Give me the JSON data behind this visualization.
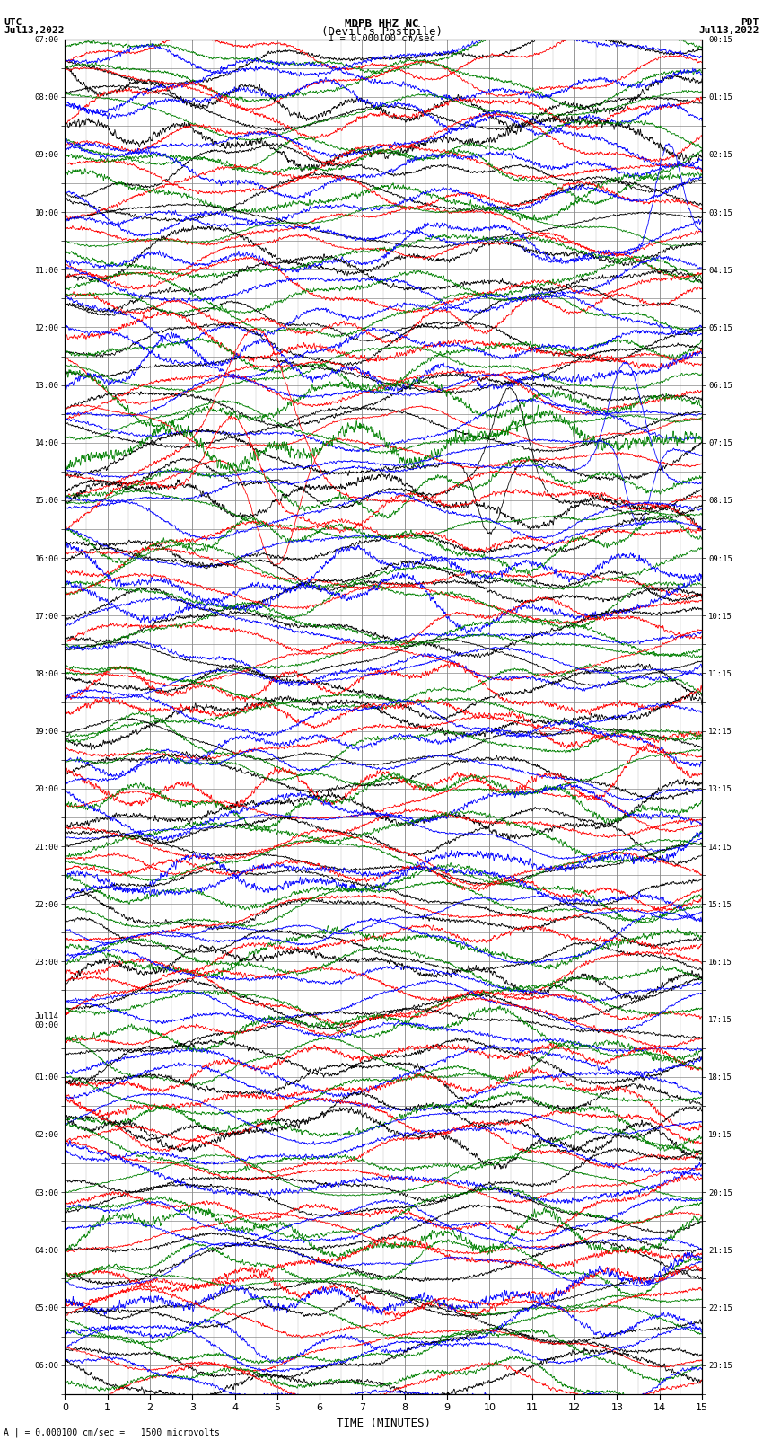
{
  "title_line1": "MDPB HHZ NC",
  "title_line2": "(Devil's Postpile)",
  "scale_label": "I = 0.000100 cm/sec",
  "utc_label": "UTC",
  "utc_date": "Jul13,2022",
  "pdt_label": "PDT",
  "pdt_date": "Jul13,2022",
  "bottom_label": "A | = 0.000100 cm/sec =   1500 microvolts",
  "xlabel": "TIME (MINUTES)",
  "bg_color": "#ffffff",
  "grid_color": "#888888",
  "trace_colors": [
    "black",
    "red",
    "green",
    "blue"
  ],
  "num_rows": 47,
  "minutes_per_row": 15,
  "fig_width": 8.5,
  "fig_height": 16.13,
  "left_tick_labels": [
    "07:00",
    "",
    "08:00",
    "",
    "09:00",
    "",
    "10:00",
    "",
    "11:00",
    "",
    "12:00",
    "",
    "13:00",
    "",
    "14:00",
    "",
    "15:00",
    "",
    "16:00",
    "",
    "17:00",
    "",
    "18:00",
    "",
    "19:00",
    "",
    "20:00",
    "",
    "21:00",
    "",
    "22:00",
    "",
    "23:00",
    "",
    "Jul14\n00:00",
    "",
    "01:00",
    "",
    "02:00",
    "",
    "03:00",
    "",
    "04:00",
    "",
    "05:00",
    "",
    "06:00",
    ""
  ],
  "right_tick_labels": [
    "00:15",
    "",
    "01:15",
    "",
    "02:15",
    "",
    "03:15",
    "",
    "04:15",
    "",
    "05:15",
    "",
    "06:15",
    "",
    "07:15",
    "",
    "08:15",
    "",
    "09:15",
    "",
    "10:15",
    "",
    "11:15",
    "",
    "12:15",
    "",
    "13:15",
    "",
    "14:15",
    "",
    "15:15",
    "",
    "16:15",
    "",
    "17:15",
    "",
    "18:15",
    "",
    "19:15",
    "",
    "20:15",
    "",
    "21:15",
    "",
    "22:15",
    "",
    "23:15",
    ""
  ]
}
